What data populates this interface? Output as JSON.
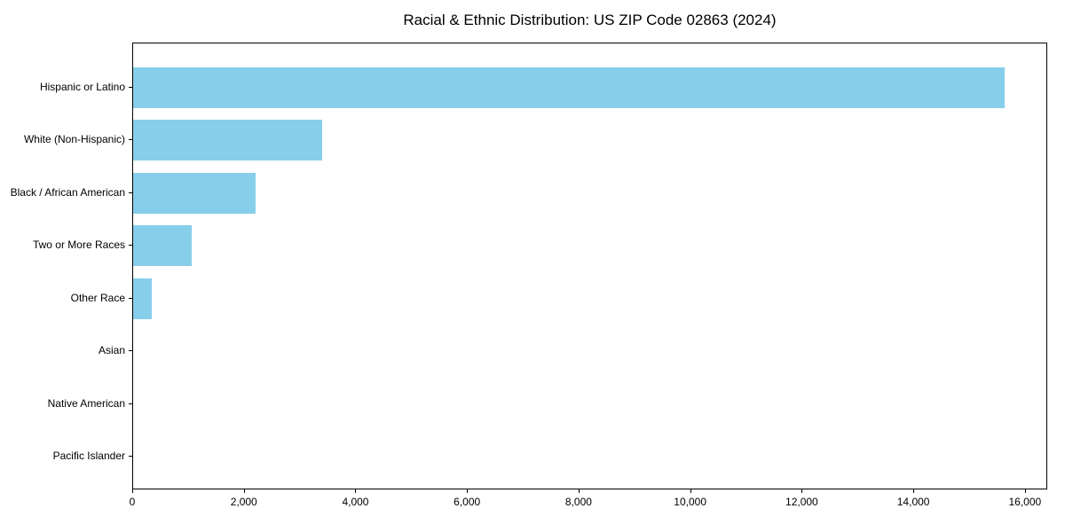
{
  "chart_data": {
    "type": "bar",
    "orientation": "horizontal",
    "title": "Racial & Ethnic Distribution: US ZIP Code 02863 (2024)",
    "categories": [
      "Hispanic or Latino",
      "White (Non-Hispanic)",
      "Black / African American",
      "Two or More Races",
      "Other Race",
      "Asian",
      "Native American",
      "Pacific Islander"
    ],
    "values": [
      15650,
      3400,
      2200,
      1050,
      330,
      0,
      0,
      0
    ],
    "xlabel": "",
    "ylabel": "",
    "xlim": [
      0,
      16400
    ],
    "x_ticks": [
      0,
      2000,
      4000,
      6000,
      8000,
      10000,
      12000,
      14000,
      16000
    ],
    "x_tick_labels": [
      "0",
      "2,000",
      "4,000",
      "6,000",
      "8,000",
      "10,000",
      "12,000",
      "14,000",
      "16,000"
    ],
    "bar_color": "#87CEEB",
    "text_color": "#000000",
    "grid": false,
    "legend": null
  }
}
